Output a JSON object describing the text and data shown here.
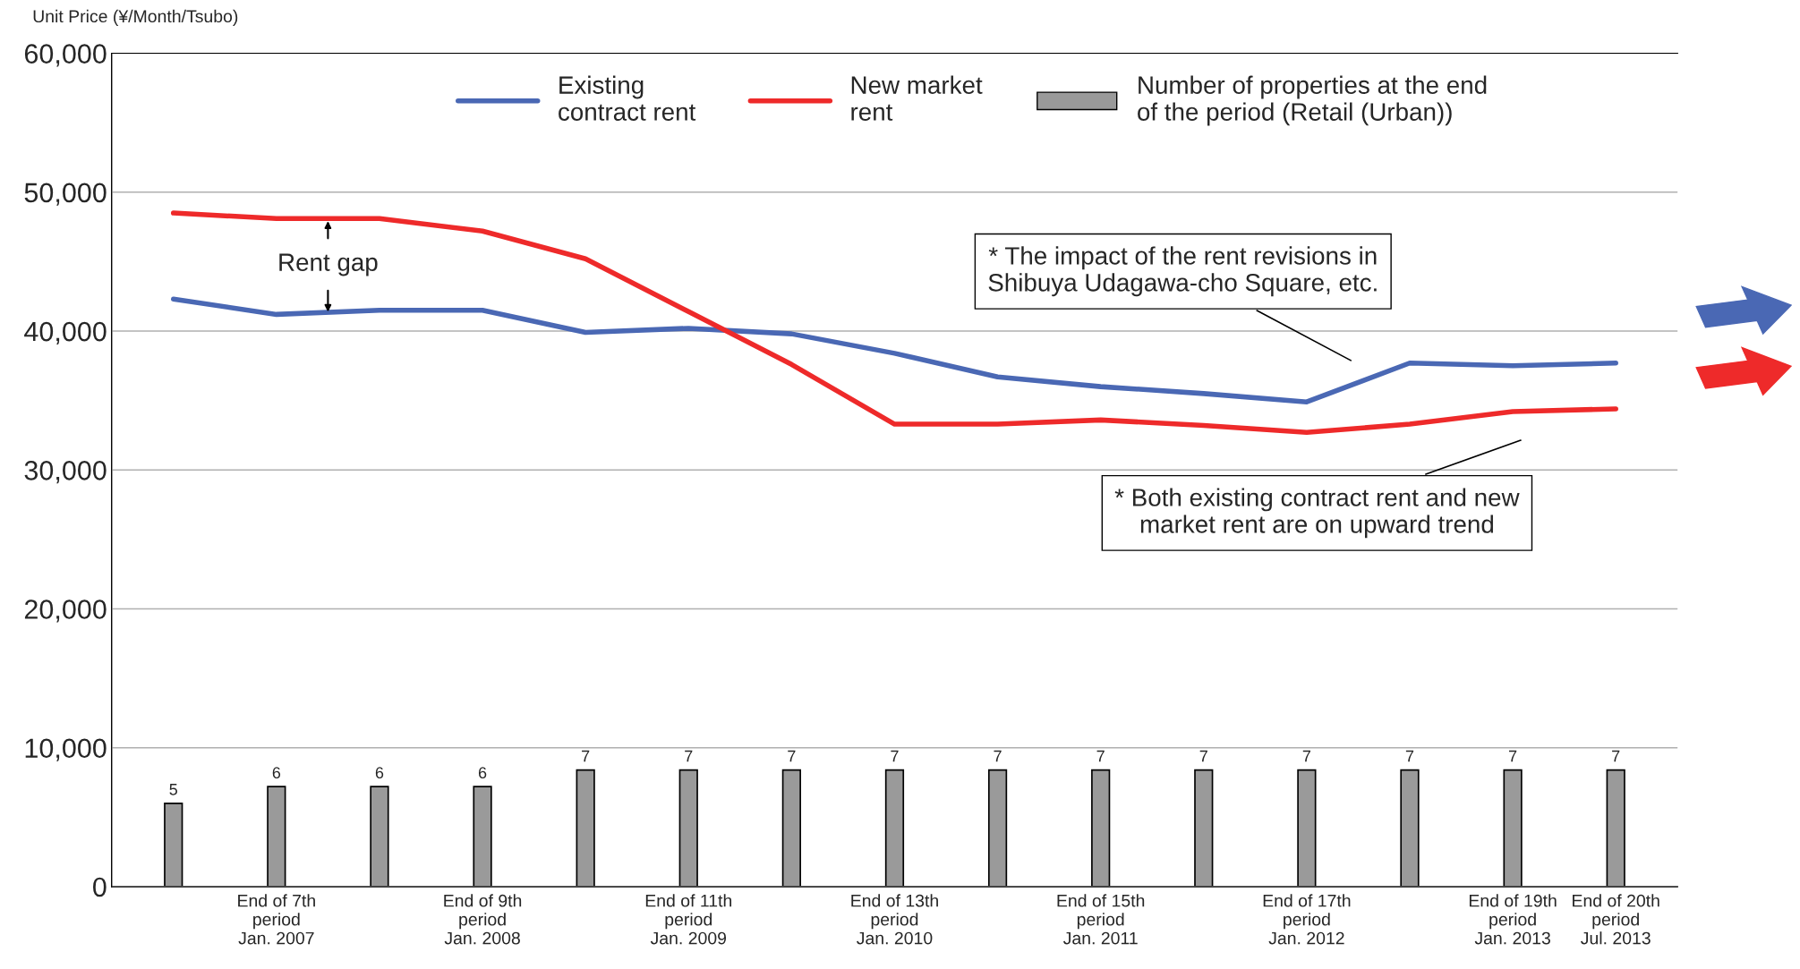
{
  "chart_data": {
    "type": "line",
    "ylabel": "Unit Price (¥/Month/Tsubo)",
    "categories": [
      null,
      "End of 7th\nperiod\nJan. 2007",
      null,
      "End of 9th\nperiod\nJan. 2008",
      null,
      "End of 11th\nperiod\nJan. 2009",
      null,
      "End of 13th\nperiod\nJan. 2010",
      null,
      "End of 15th\nperiod\nJan. 2011",
      null,
      "End of 17th\nperiod\nJan. 2012",
      null,
      "End of 19th\nperiod\nJan. 2013",
      "End of 20th\nperiod\nJul. 2013"
    ],
    "series": [
      {
        "name": "Existing\ncontract rent",
        "color": "#4a68b4",
        "values": [
          42300,
          41200,
          41500,
          41500,
          39900,
          40200,
          39800,
          38400,
          36700,
          36000,
          35500,
          34900,
          37700,
          37500,
          37700
        ]
      },
      {
        "name": "New market\nrent",
        "color": "#ee2a2a",
        "values": [
          48500,
          48100,
          48100,
          47200,
          45200,
          41400,
          37600,
          33300,
          33300,
          33600,
          33200,
          32700,
          33300,
          34200,
          34400
        ]
      },
      {
        "name": "Number of properties at the end\nof the period (Retail (Urban))",
        "type": "bar",
        "axis": "y2",
        "color": "#9a9a9a",
        "values": [
          5,
          6,
          6,
          6,
          7,
          7,
          7,
          7,
          7,
          7,
          7,
          7,
          7,
          7,
          7
        ],
        "value_labels": [
          "5",
          "6",
          "6",
          "6",
          "7",
          "7",
          "7",
          "7",
          "7",
          "7",
          "7",
          "7",
          "7",
          "7",
          "7"
        ]
      }
    ],
    "ylim": [
      0,
      60000
    ],
    "yticks": [
      {
        "value": 0,
        "label": "0"
      },
      {
        "value": 10000,
        "label": "10,000"
      },
      {
        "value": 20000,
        "label": "20,000"
      },
      {
        "value": 30000,
        "label": "30,000"
      },
      {
        "value": 40000,
        "label": "40,000"
      },
      {
        "value": 50000,
        "label": "50,000"
      },
      {
        "value": 60000,
        "label": "60,000"
      }
    ],
    "y2lim": [
      0,
      50
    ],
    "grid": "y",
    "legend": "top",
    "annotations": [
      "Rent gap",
      "* The impact of the rent revisions in\nShibuya Udagawa-cho Square, etc.",
      "* Both existing contract rent and new\nmarket rent are on upward trend"
    ]
  }
}
